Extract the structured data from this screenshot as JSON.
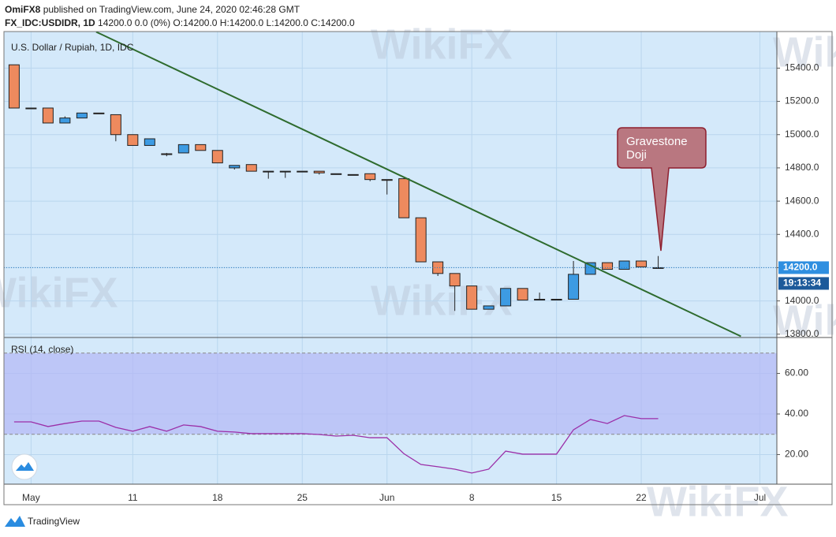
{
  "header": {
    "author": "OmiFX8",
    "published": "published on TradingView.com, June 24, 2020 02:46:28 GMT",
    "symbol": "FX_IDC:USDIDR, 1D",
    "quote": "14200.0 0.0 (0%) O:14200.0 H:14200.0 L:14200.0 C:14200.0"
  },
  "watermark": "WikiFX",
  "footer": "TradingView",
  "chart_data": [
    {
      "type": "candlestick",
      "title": "U.S. Dollar / Rupiah, 1D, IDC",
      "open": [
        15420,
        15160,
        15160,
        15070,
        15100,
        15130,
        15120,
        15000,
        14935,
        14885,
        14890,
        14940,
        14905,
        14800,
        14820,
        14780,
        14780,
        14780,
        14780,
        14765,
        14760,
        14765,
        14730,
        14735,
        14500,
        14235,
        14165,
        14090,
        13950,
        13970,
        14075,
        14010,
        14010,
        14010,
        14160,
        14230,
        14190,
        14240,
        14200
      ],
      "high": [
        15420,
        15160,
        15160,
        15110,
        15130,
        15130,
        15120,
        15000,
        14975,
        14890,
        14940,
        14940,
        14905,
        14815,
        14820,
        14780,
        14780,
        14780,
        14780,
        14765,
        14760,
        14765,
        14730,
        14740,
        14500,
        14235,
        14165,
        14090,
        13970,
        14075,
        14075,
        14050,
        14010,
        14240,
        14230,
        14230,
        14240,
        14240,
        14270
      ],
      "low": [
        15160,
        15160,
        15070,
        15070,
        15100,
        15125,
        14960,
        14935,
        14935,
        14870,
        14890,
        14905,
        14830,
        14790,
        14780,
        14735,
        14740,
        14780,
        14760,
        14760,
        14755,
        14720,
        14640,
        14500,
        14235,
        14150,
        13940,
        13950,
        13950,
        13970,
        14005,
        14010,
        14010,
        14010,
        14160,
        14190,
        14190,
        14205,
        14200
      ],
      "close": [
        15160,
        15160,
        15070,
        15100,
        15130,
        15125,
        15000,
        14935,
        14975,
        14880,
        14940,
        14905,
        14830,
        14815,
        14780,
        14780,
        14780,
        14780,
        14770,
        14765,
        14760,
        14730,
        14725,
        14500,
        14235,
        14165,
        14090,
        13950,
        13970,
        14075,
        14005,
        14010,
        14010,
        14160,
        14230,
        14190,
        14240,
        14205,
        14200
      ],
      "up_color": "#3d9be3",
      "down_color": "#ee8a5e",
      "xlim": [
        -0.6,
        45
      ],
      "xticks": [
        {
          "value": 1,
          "label": "May"
        },
        {
          "value": 7,
          "label": "11"
        },
        {
          "value": 12,
          "label": "18"
        },
        {
          "value": 17,
          "label": "25"
        },
        {
          "value": 22,
          "label": "Jun"
        },
        {
          "value": 27,
          "label": "8"
        },
        {
          "value": 32,
          "label": "15"
        },
        {
          "value": 37,
          "label": "22"
        },
        {
          "value": 44,
          "label": "Jul"
        }
      ],
      "ylim": [
        13780,
        15620
      ],
      "yticks": [
        {
          "value": 15400,
          "label": "15400.0"
        },
        {
          "value": 15200,
          "label": "15200.0"
        },
        {
          "value": 15000,
          "label": "15000.0"
        },
        {
          "value": 14800,
          "label": "14800.0"
        },
        {
          "value": 14600,
          "label": "14600.0"
        },
        {
          "value": 14400,
          "label": "14400.0"
        },
        {
          "value": 14200,
          "label": "14200.0"
        },
        {
          "value": 14000,
          "label": "14000.0"
        },
        {
          "value": 13800,
          "label": "13800.0"
        }
      ],
      "grid": true,
      "last_price": {
        "value": 14200,
        "label": "14200.0"
      },
      "countdown": "19:13:34",
      "trendline": {
        "x": [
          4.84,
          42.88
        ],
        "y": [
          15618,
          13787
        ],
        "color": "#2e6b2e"
      },
      "annotation": [
        "Gravestone",
        "Doji"
      ]
    },
    {
      "type": "line",
      "title": "RSI (14, close)",
      "values": [
        36.1,
        36.1,
        33.8,
        35.3,
        36.5,
        36.5,
        33.4,
        31.5,
        33.8,
        31.5,
        34.6,
        33.8,
        31.5,
        31.1,
        30.3,
        30.3,
        30.3,
        30.3,
        29.9,
        29.1,
        29.5,
        28.3,
        28.3,
        20.4,
        15.1,
        14.0,
        12.8,
        10.9,
        12.8,
        21.7,
        20.2,
        20.2,
        20.2,
        32.2,
        37.3,
        35.3,
        39.2,
        37.7,
        37.7
      ],
      "color": "#9b2fa8",
      "band": [
        30,
        70
      ],
      "ylim": [
        5.4,
        77.7
      ],
      "yticks": [
        {
          "value": 60,
          "label": "60.00"
        },
        {
          "value": 40,
          "label": "40.00"
        },
        {
          "value": 20,
          "label": "20.00"
        }
      ]
    }
  ]
}
